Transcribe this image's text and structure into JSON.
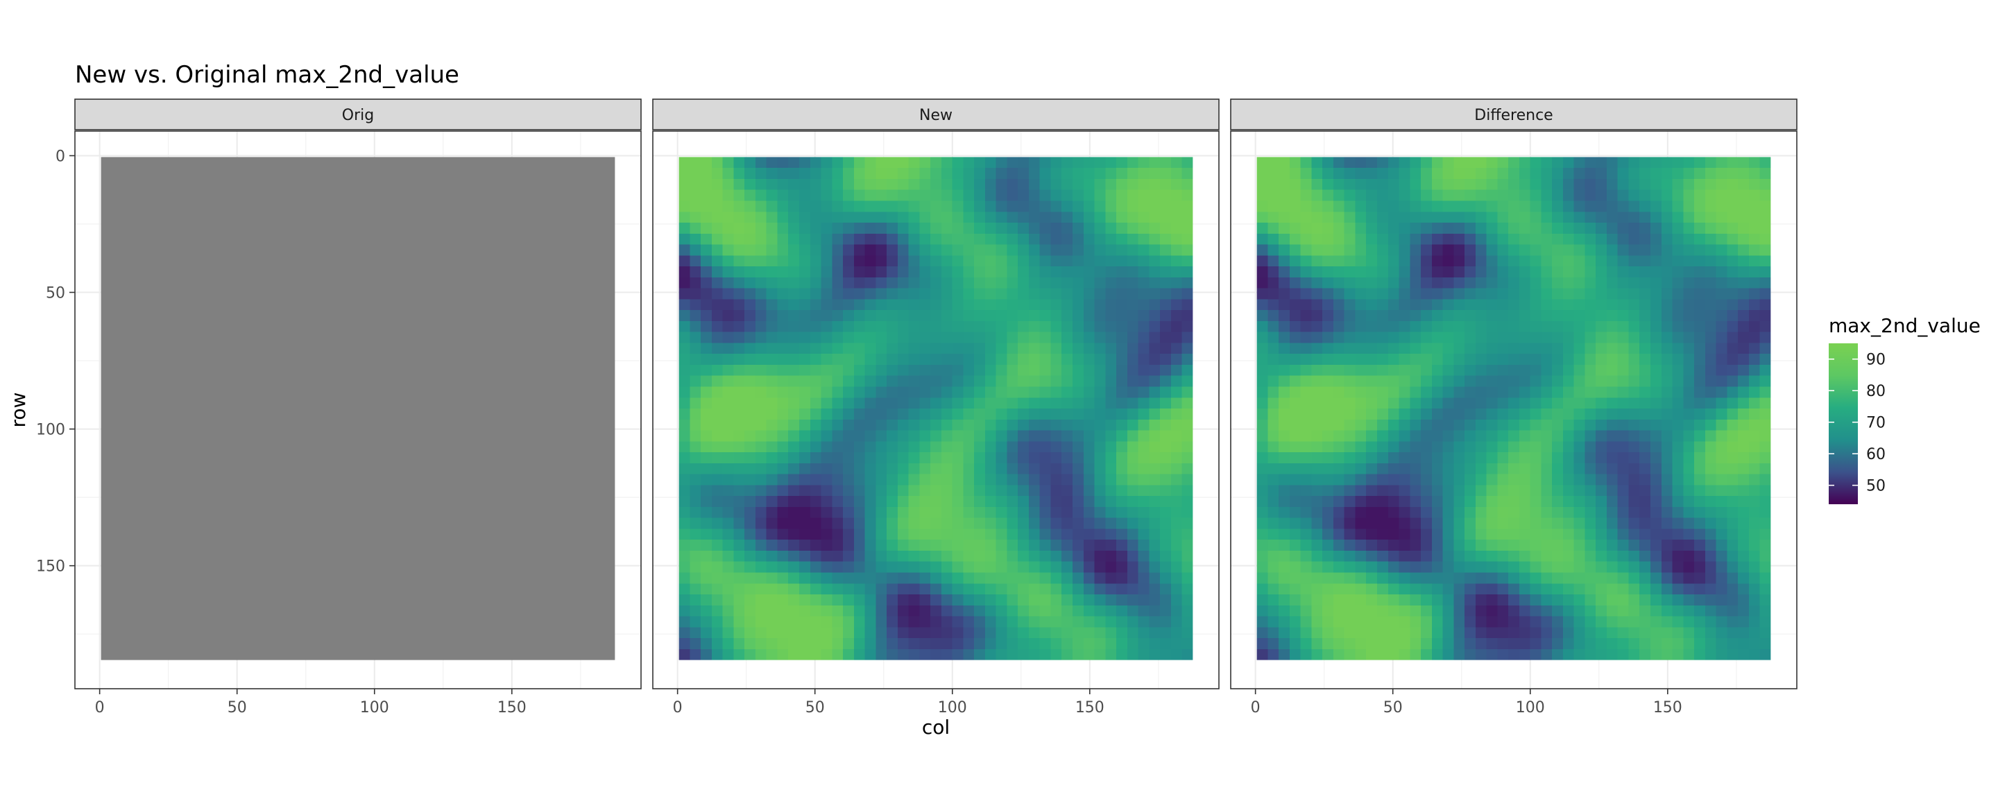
{
  "chart_data": {
    "type": "heatmap",
    "title": "New vs. Original max_2nd_value",
    "xlabel": "col",
    "ylabel": "row",
    "xlim": [
      -9,
      197
    ],
    "ylim": [
      195,
      -9
    ],
    "x_ticks": [
      "0",
      "50",
      "100",
      "150"
    ],
    "y_ticks": [
      "0",
      "50",
      "100",
      "150"
    ],
    "grid": true,
    "legend_placement": "right",
    "legend": {
      "title": "max_2nd_value",
      "labels": [
        "90",
        "80",
        "70",
        "60",
        "50"
      ],
      "values": [
        90,
        80,
        70,
        60,
        50
      ],
      "range": [
        44,
        95
      ],
      "colors": [
        "#440154",
        "#3b528b",
        "#21908c",
        "#27ad81",
        "#5dc863",
        "#7ad151"
      ]
    },
    "grid_size": {
      "cols": 187,
      "rows": 184
    },
    "panels": [
      {
        "name": "Orig",
        "fill": "#808080",
        "constant": true
      },
      {
        "name": "New",
        "constant": false
      },
      {
        "name": "Difference",
        "constant": false
      }
    ]
  }
}
